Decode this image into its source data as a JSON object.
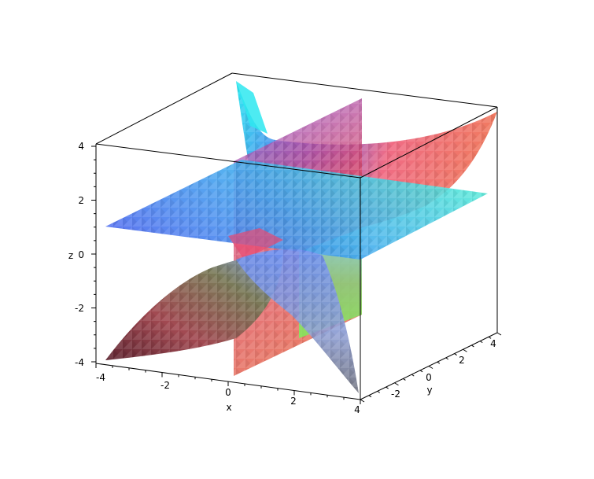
{
  "chart_data": {
    "type": "surface3d",
    "title": "",
    "xlabel": "x",
    "ylabel": "y",
    "zlabel": "z",
    "x_ticks": [
      "-4",
      "-2",
      "0",
      "2",
      "4"
    ],
    "y_ticks": [
      "-2",
      "0",
      "2",
      "4"
    ],
    "z_ticks": [
      "4",
      "2",
      "0",
      "-2",
      "-4"
    ],
    "xlim": [
      -4,
      4
    ],
    "ylim": [
      -4,
      4
    ],
    "zlim": [
      -4,
      4
    ],
    "surfaces": [
      {
        "kind": "plane",
        "equation": "z = 1",
        "colors": [
          "#4a6cf0",
          "#52f0d6"
        ]
      },
      {
        "kind": "plane",
        "equation": "x = 0",
        "colors": [
          "#8a63ea",
          "#ea4d62",
          "#7ef06a"
        ]
      },
      {
        "kind": "curved",
        "region": "upper",
        "colors": [
          "#2ee8f0",
          "#6a6cf0",
          "#f06c85",
          "#f0775f"
        ]
      },
      {
        "kind": "curved",
        "region": "lower",
        "colors": [
          "#6e2a36",
          "#b84f55",
          "#6b8a55",
          "#7da0f0"
        ]
      }
    ],
    "box": true,
    "grid": false,
    "legend": "none"
  }
}
